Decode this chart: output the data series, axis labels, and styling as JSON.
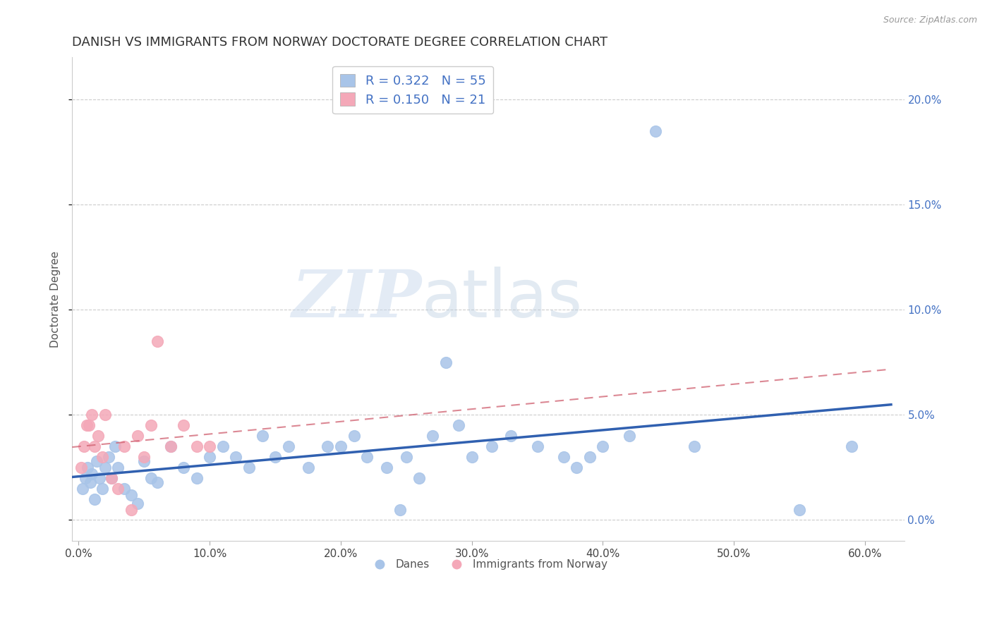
{
  "title": "DANISH VS IMMIGRANTS FROM NORWAY DOCTORATE DEGREE CORRELATION CHART",
  "source": "Source: ZipAtlas.com",
  "xlabel_ticks": [
    "0.0%",
    "10.0%",
    "20.0%",
    "30.0%",
    "40.0%",
    "50.0%",
    "60.0%"
  ],
  "xlabel_vals": [
    0,
    10,
    20,
    30,
    40,
    50,
    60
  ],
  "ylabel": "Doctorate Degree",
  "ylabel_ticks": [
    "0.0%",
    "5.0%",
    "10.0%",
    "15.0%",
    "20.0%"
  ],
  "ylabel_vals": [
    0,
    5,
    10,
    15,
    20
  ],
  "ylim": [
    -1.0,
    22
  ],
  "xlim": [
    -0.5,
    63
  ],
  "danes_R": "0.322",
  "danes_N": "55",
  "norway_R": "0.150",
  "norway_N": "21",
  "danes_color": "#a8c4e8",
  "norway_color": "#f4a8b8",
  "danes_line_color": "#3060b0",
  "norway_line_color": "#d06070",
  "danes_x": [
    0.3,
    0.5,
    0.7,
    0.9,
    1.0,
    1.2,
    1.4,
    1.6,
    1.8,
    2.0,
    2.3,
    2.5,
    2.8,
    3.0,
    3.5,
    4.0,
    4.5,
    5.0,
    5.5,
    6.0,
    7.0,
    8.0,
    9.0,
    10.0,
    11.0,
    12.0,
    13.0,
    14.0,
    15.0,
    16.0,
    17.5,
    19.0,
    20.0,
    21.0,
    22.0,
    23.5,
    24.5,
    25.0,
    26.0,
    27.0,
    28.0,
    29.0,
    30.0,
    31.5,
    33.0,
    35.0,
    37.0,
    38.0,
    39.0,
    40.0,
    42.0,
    44.0,
    47.0,
    55.0,
    59.0
  ],
  "danes_y": [
    1.5,
    2.0,
    2.5,
    1.8,
    2.2,
    1.0,
    2.8,
    2.0,
    1.5,
    2.5,
    3.0,
    2.0,
    3.5,
    2.5,
    1.5,
    1.2,
    0.8,
    2.8,
    2.0,
    1.8,
    3.5,
    2.5,
    2.0,
    3.0,
    3.5,
    3.0,
    2.5,
    4.0,
    3.0,
    3.5,
    2.5,
    3.5,
    3.5,
    4.0,
    3.0,
    2.5,
    0.5,
    3.0,
    2.0,
    4.0,
    7.5,
    4.5,
    3.0,
    3.5,
    4.0,
    3.5,
    3.0,
    2.5,
    3.0,
    3.5,
    4.0,
    18.5,
    3.5,
    0.5,
    3.5
  ],
  "norway_x": [
    0.2,
    0.4,
    0.6,
    0.8,
    1.0,
    1.2,
    1.5,
    1.8,
    2.0,
    2.5,
    3.0,
    3.5,
    4.0,
    4.5,
    5.0,
    5.5,
    6.0,
    7.0,
    8.0,
    9.0,
    10.0
  ],
  "norway_y": [
    2.5,
    3.5,
    4.5,
    4.5,
    5.0,
    3.5,
    4.0,
    3.0,
    5.0,
    2.0,
    1.5,
    3.5,
    0.5,
    4.0,
    3.0,
    4.5,
    8.5,
    3.5,
    4.5,
    3.5,
    3.5
  ],
  "norway_line_xrange": [
    -0.5,
    62
  ],
  "danes_line_xrange": [
    -0.5,
    62
  ],
  "watermark_zip": "ZIP",
  "watermark_atlas": "atlas",
  "background_color": "#ffffff",
  "grid_color": "#cccccc",
  "title_fontsize": 13,
  "axis_label_fontsize": 11,
  "tick_fontsize": 11,
  "legend_fontsize": 13
}
